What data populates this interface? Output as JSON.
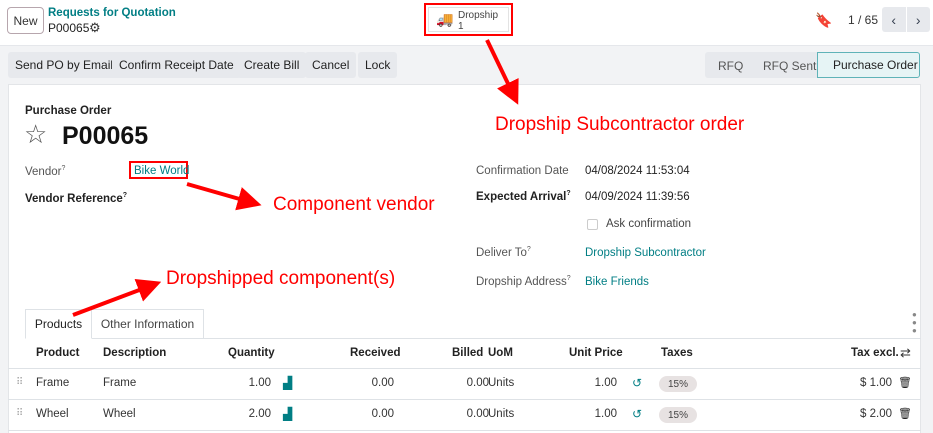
{
  "header": {
    "new_label": "New",
    "breadcrumb": "Requests for Quotation",
    "record": "P00065",
    "smart_button": {
      "label": "Dropship",
      "count": "1"
    },
    "pager": "1 / 65"
  },
  "actions": [
    "Send PO by Email",
    "Confirm Receipt Date",
    "Create Bill",
    "Cancel",
    "Lock"
  ],
  "status": {
    "steps": [
      "RFQ",
      "RFQ Sent",
      "Purchase Order"
    ],
    "active": "Purchase Order"
  },
  "form": {
    "type_label": "Purchase Order",
    "name": "P00065",
    "vendor_label": "Vendor",
    "vendor": "Bike World",
    "vendor_ref_label": "Vendor Reference",
    "confirmation_label": "Confirmation Date",
    "confirmation": "04/08/2024 11:53:04",
    "expected_label": "Expected Arrival",
    "expected": "04/09/2024 11:39:56",
    "ask_confirmation": "Ask confirmation",
    "deliver_to_label": "Deliver To",
    "deliver_to": "Dropship Subcontractor",
    "dropship_address_label": "Dropship Address",
    "dropship_address": "Bike Friends",
    "help": "?"
  },
  "tabs": [
    "Products",
    "Other Information"
  ],
  "table": {
    "columns": [
      "Product",
      "Description",
      "Quantity",
      "Received",
      "Billed",
      "UoM",
      "Unit Price",
      "Taxes",
      "Tax excl."
    ],
    "rows": [
      {
        "product": "Frame",
        "description": "Frame",
        "quantity": "1.00",
        "received": "0.00",
        "billed": "0.00",
        "uom": "Units",
        "unit_price": "1.00",
        "taxes": "15%",
        "subtotal": "$ 1.00"
      },
      {
        "product": "Wheel",
        "description": "Wheel",
        "quantity": "2.00",
        "received": "0.00",
        "billed": "0.00",
        "uom": "Units",
        "unit_price": "1.00",
        "taxes": "15%",
        "subtotal": "$ 2.00"
      }
    ]
  },
  "annotations": {
    "dropship": "Dropship Subcontractor order",
    "vendor": "Component vendor",
    "components": "Dropshipped component(s)",
    "color": "#ff0000"
  }
}
